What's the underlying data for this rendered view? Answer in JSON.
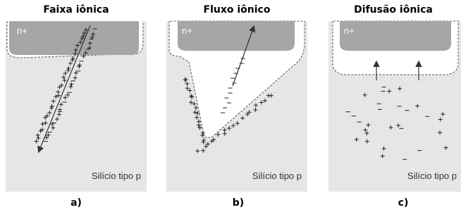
{
  "panels": [
    {
      "title": "Faixa iônica",
      "region": "n+",
      "substrate": "Silício tipo p",
      "caption": "a)"
    },
    {
      "title": "Fluxo iônico",
      "region": "n+",
      "substrate": "Silício tipo p",
      "caption": "b)"
    },
    {
      "title": "Difusão iônica",
      "region": "n+",
      "substrate": "Silício tipo p",
      "caption": "c)"
    }
  ]
}
